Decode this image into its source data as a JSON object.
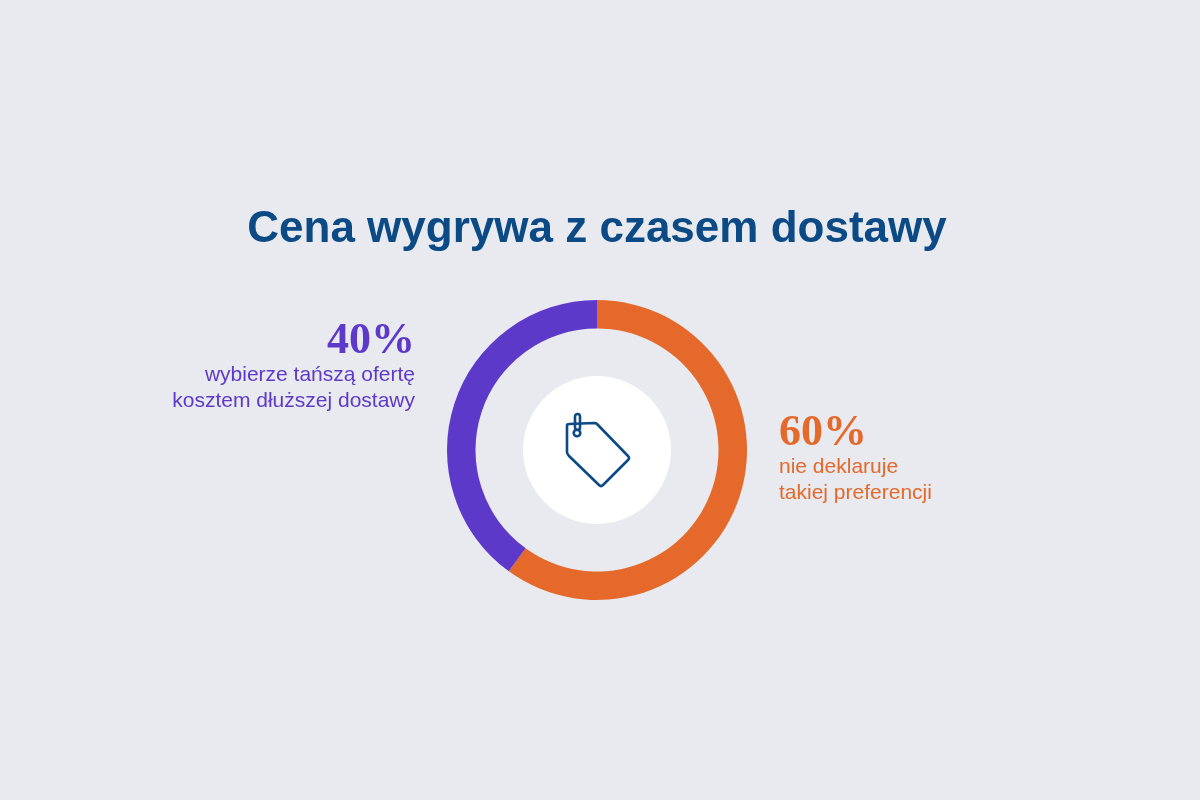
{
  "chart_data": {
    "type": "donut",
    "title": "Cena wygrywa z czasem dostawy",
    "categories": [
      "nie deklaruje\ntakiej preferencji",
      "wybierze tańszą ofertę\nkosztem dłuższej dostawy"
    ],
    "values": [
      60,
      40
    ],
    "colors": [
      "#e4692a",
      "#5d39c9"
    ],
    "value_labels": [
      "60%",
      "40%"
    ]
  }
}
